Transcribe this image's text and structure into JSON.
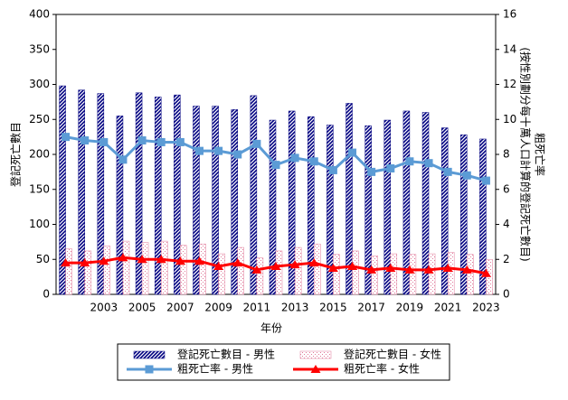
{
  "chart_data": {
    "type": "bar",
    "categories": [
      null,
      null,
      "2003",
      null,
      "2005",
      null,
      "2007",
      null,
      "2009",
      null,
      "2011",
      null,
      "2013",
      null,
      "2015",
      null,
      "2017",
      null,
      "2019",
      null,
      "2021",
      null,
      "2023"
    ],
    "xlabel": "年份",
    "ylabel": "登記死亡數目",
    "y2label": [
      "粗死亡率",
      "(按性別劃分每十萬人口計算的登記死亡數目)"
    ],
    "ylim": [
      0,
      400
    ],
    "yticks": [
      0,
      50,
      100,
      150,
      200,
      250,
      300,
      350,
      400
    ],
    "y2lim": [
      0,
      16
    ],
    "y2ticks": [
      0,
      2,
      4,
      6,
      8,
      10,
      12,
      14,
      16
    ],
    "legend": "bottom",
    "series": [
      {
        "name": "登記死亡數目 - 男性",
        "type": "bar",
        "pattern": "stripes",
        "color": "#000080",
        "values": [
          298,
          292,
          287,
          255,
          288,
          282,
          285,
          269,
          269,
          264,
          284,
          249,
          262,
          254,
          242,
          273,
          241,
          249,
          262,
          260,
          238,
          228,
          222
        ]
      },
      {
        "name": "登記死亡數目 - 女性",
        "type": "bar",
        "pattern": "dots",
        "color": "#e07a9a",
        "values": [
          65,
          62,
          69,
          76,
          74,
          76,
          70,
          72,
          58,
          67,
          52,
          62,
          67,
          72,
          57,
          62,
          55,
          58,
          57,
          58,
          60,
          57,
          50
        ]
      },
      {
        "name": "粗死亡率 - 男性",
        "type": "line",
        "marker": "square",
        "axis": "y2",
        "color": "#5b9bd5",
        "values": [
          9.0,
          8.8,
          8.7,
          7.7,
          8.8,
          8.7,
          8.7,
          8.2,
          8.2,
          8.0,
          8.6,
          7.4,
          7.8,
          7.6,
          7.1,
          8.1,
          7.0,
          7.2,
          7.6,
          7.5,
          7.0,
          6.8,
          6.5
        ]
      },
      {
        "name": "粗死亡率 - 女性",
        "type": "line",
        "marker": "triangle",
        "axis": "y2",
        "color": "#ff0000",
        "values": [
          1.8,
          1.8,
          1.9,
          2.1,
          2.0,
          2.0,
          1.9,
          1.9,
          1.6,
          1.8,
          1.4,
          1.6,
          1.7,
          1.8,
          1.5,
          1.6,
          1.4,
          1.5,
          1.4,
          1.4,
          1.5,
          1.4,
          1.2
        ]
      }
    ]
  }
}
